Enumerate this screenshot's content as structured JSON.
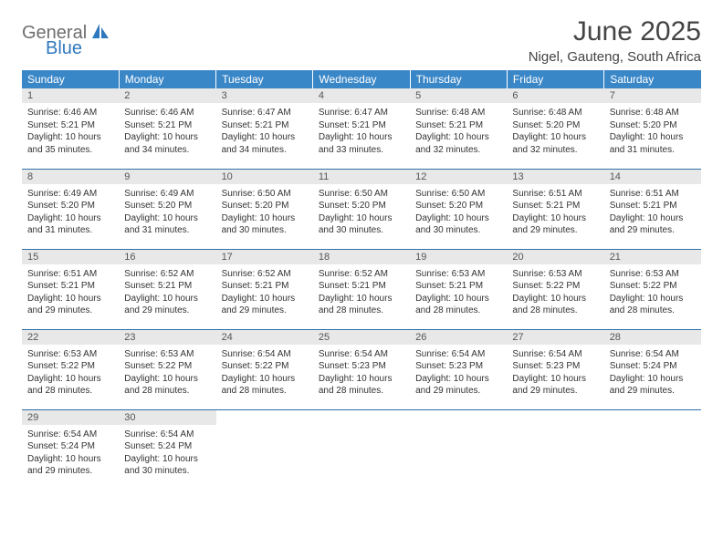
{
  "logo": {
    "word1": "General",
    "word2": "Blue"
  },
  "title": "June 2025",
  "location": "Nigel, Gauteng, South Africa",
  "colors": {
    "header_bg": "#3a87c8",
    "header_text": "#ffffff",
    "daynum_bg": "#e8e8e8",
    "row_divider": "#2f6fa8",
    "logo_gray": "#6e6e6e",
    "logo_blue": "#2f78bd"
  },
  "day_headers": [
    "Sunday",
    "Monday",
    "Tuesday",
    "Wednesday",
    "Thursday",
    "Friday",
    "Saturday"
  ],
  "weeks": [
    [
      {
        "n": "1",
        "sr": "6:46 AM",
        "ss": "5:21 PM",
        "dl": "10 hours and 35 minutes."
      },
      {
        "n": "2",
        "sr": "6:46 AM",
        "ss": "5:21 PM",
        "dl": "10 hours and 34 minutes."
      },
      {
        "n": "3",
        "sr": "6:47 AM",
        "ss": "5:21 PM",
        "dl": "10 hours and 34 minutes."
      },
      {
        "n": "4",
        "sr": "6:47 AM",
        "ss": "5:21 PM",
        "dl": "10 hours and 33 minutes."
      },
      {
        "n": "5",
        "sr": "6:48 AM",
        "ss": "5:21 PM",
        "dl": "10 hours and 32 minutes."
      },
      {
        "n": "6",
        "sr": "6:48 AM",
        "ss": "5:20 PM",
        "dl": "10 hours and 32 minutes."
      },
      {
        "n": "7",
        "sr": "6:48 AM",
        "ss": "5:20 PM",
        "dl": "10 hours and 31 minutes."
      }
    ],
    [
      {
        "n": "8",
        "sr": "6:49 AM",
        "ss": "5:20 PM",
        "dl": "10 hours and 31 minutes."
      },
      {
        "n": "9",
        "sr": "6:49 AM",
        "ss": "5:20 PM",
        "dl": "10 hours and 31 minutes."
      },
      {
        "n": "10",
        "sr": "6:50 AM",
        "ss": "5:20 PM",
        "dl": "10 hours and 30 minutes."
      },
      {
        "n": "11",
        "sr": "6:50 AM",
        "ss": "5:20 PM",
        "dl": "10 hours and 30 minutes."
      },
      {
        "n": "12",
        "sr": "6:50 AM",
        "ss": "5:20 PM",
        "dl": "10 hours and 30 minutes."
      },
      {
        "n": "13",
        "sr": "6:51 AM",
        "ss": "5:21 PM",
        "dl": "10 hours and 29 minutes."
      },
      {
        "n": "14",
        "sr": "6:51 AM",
        "ss": "5:21 PM",
        "dl": "10 hours and 29 minutes."
      }
    ],
    [
      {
        "n": "15",
        "sr": "6:51 AM",
        "ss": "5:21 PM",
        "dl": "10 hours and 29 minutes."
      },
      {
        "n": "16",
        "sr": "6:52 AM",
        "ss": "5:21 PM",
        "dl": "10 hours and 29 minutes."
      },
      {
        "n": "17",
        "sr": "6:52 AM",
        "ss": "5:21 PM",
        "dl": "10 hours and 29 minutes."
      },
      {
        "n": "18",
        "sr": "6:52 AM",
        "ss": "5:21 PM",
        "dl": "10 hours and 28 minutes."
      },
      {
        "n": "19",
        "sr": "6:53 AM",
        "ss": "5:21 PM",
        "dl": "10 hours and 28 minutes."
      },
      {
        "n": "20",
        "sr": "6:53 AM",
        "ss": "5:22 PM",
        "dl": "10 hours and 28 minutes."
      },
      {
        "n": "21",
        "sr": "6:53 AM",
        "ss": "5:22 PM",
        "dl": "10 hours and 28 minutes."
      }
    ],
    [
      {
        "n": "22",
        "sr": "6:53 AM",
        "ss": "5:22 PM",
        "dl": "10 hours and 28 minutes."
      },
      {
        "n": "23",
        "sr": "6:53 AM",
        "ss": "5:22 PM",
        "dl": "10 hours and 28 minutes."
      },
      {
        "n": "24",
        "sr": "6:54 AM",
        "ss": "5:22 PM",
        "dl": "10 hours and 28 minutes."
      },
      {
        "n": "25",
        "sr": "6:54 AM",
        "ss": "5:23 PM",
        "dl": "10 hours and 28 minutes."
      },
      {
        "n": "26",
        "sr": "6:54 AM",
        "ss": "5:23 PM",
        "dl": "10 hours and 29 minutes."
      },
      {
        "n": "27",
        "sr": "6:54 AM",
        "ss": "5:23 PM",
        "dl": "10 hours and 29 minutes."
      },
      {
        "n": "28",
        "sr": "6:54 AM",
        "ss": "5:24 PM",
        "dl": "10 hours and 29 minutes."
      }
    ],
    [
      {
        "n": "29",
        "sr": "6:54 AM",
        "ss": "5:24 PM",
        "dl": "10 hours and 29 minutes."
      },
      {
        "n": "30",
        "sr": "6:54 AM",
        "ss": "5:24 PM",
        "dl": "10 hours and 30 minutes."
      },
      null,
      null,
      null,
      null,
      null
    ]
  ],
  "labels": {
    "sunrise": "Sunrise:",
    "sunset": "Sunset:",
    "daylight": "Daylight:"
  }
}
